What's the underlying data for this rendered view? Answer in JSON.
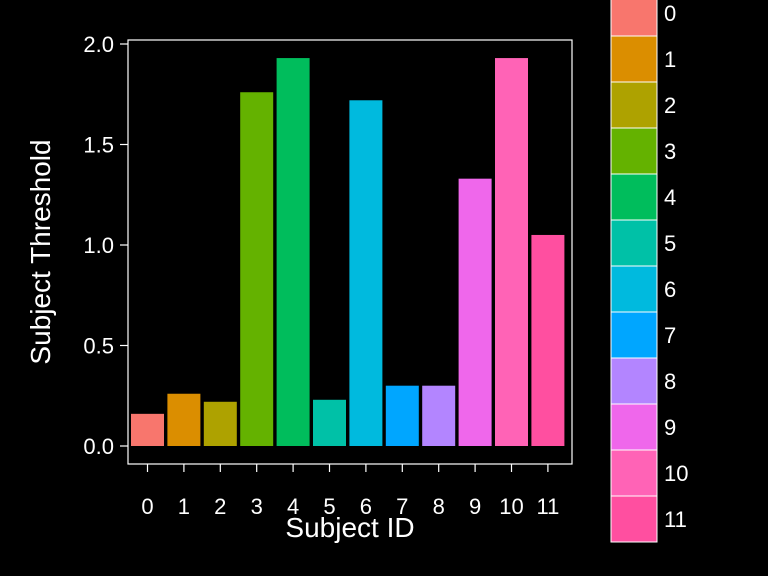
{
  "chart_data": {
    "type": "bar",
    "categories": [
      "0",
      "1",
      "2",
      "3",
      "4",
      "5",
      "6",
      "7",
      "8",
      "9",
      "10",
      "11"
    ],
    "values": [
      0.16,
      0.26,
      0.22,
      1.76,
      1.93,
      0.23,
      1.72,
      0.3,
      0.3,
      1.33,
      1.93,
      1.05
    ],
    "colors": [
      "#F8766D",
      "#DB8E00",
      "#AEA200",
      "#64B200",
      "#00BD5C",
      "#00C1A7",
      "#00BADE",
      "#00A6FF",
      "#B385FF",
      "#EF67EB",
      "#FF63B6",
      "#FF4FA0"
    ],
    "xlabel": "Subject ID",
    "ylabel": "Subject Threshold",
    "ylim": [
      0,
      2
    ],
    "yticks": [
      "0.0",
      "0.5",
      "1.0",
      "1.5",
      "2.0"
    ],
    "grid": false,
    "legend": {
      "position": "right",
      "entries": [
        "0",
        "1",
        "2",
        "3",
        "4",
        "5",
        "6",
        "7",
        "8",
        "9",
        "10",
        "11"
      ]
    }
  }
}
